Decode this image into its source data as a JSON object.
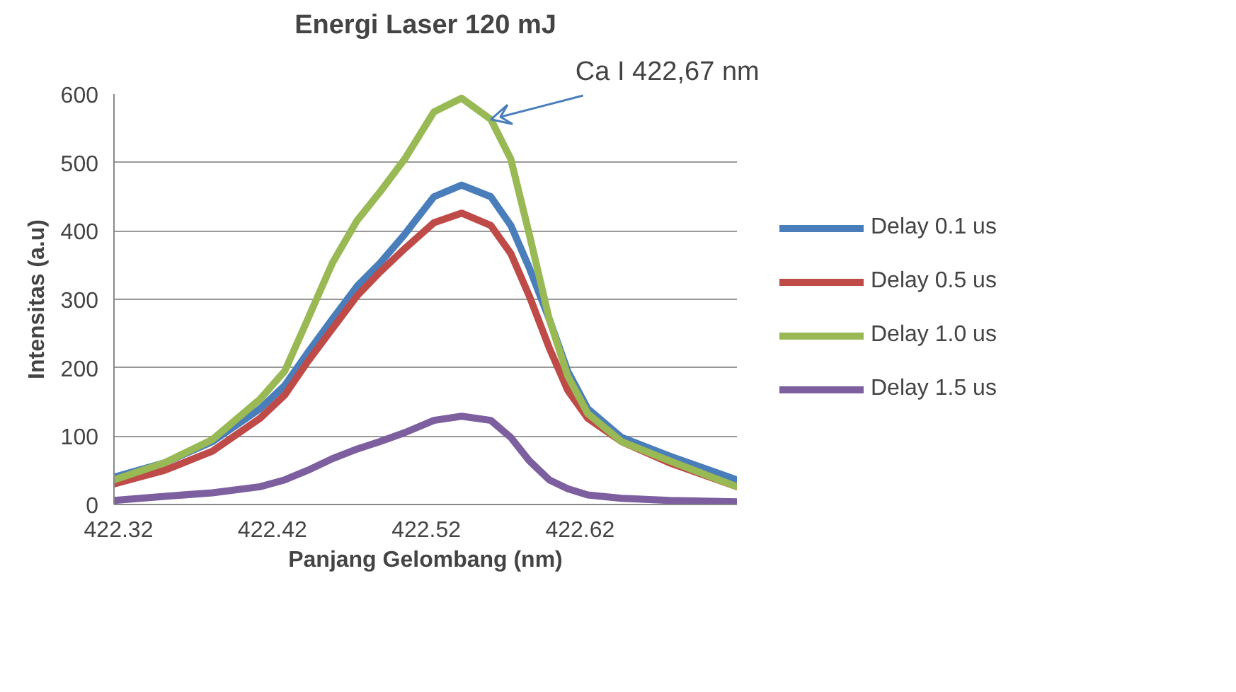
{
  "chart_data": {
    "type": "line",
    "title": "Energi Laser 120 mJ",
    "xlabel": "Panjang Gelombang (nm)",
    "ylabel": "Intensitas (a.u)",
    "x": [
      422.317,
      422.35,
      422.381,
      422.412,
      422.428,
      422.443,
      422.459,
      422.475,
      422.49,
      422.506,
      422.525,
      422.543,
      422.562,
      422.575,
      422.587,
      422.6,
      422.612,
      422.625,
      422.647,
      422.678,
      422.722
    ],
    "series": [
      {
        "name": "Delay 0.1 us",
        "color": "#4a7ebb",
        "values": [
          40,
          61,
          92,
          140,
          174,
          222,
          271,
          319,
          353,
          395,
          450,
          467,
          450,
          408,
          346,
          271,
          195,
          140,
          98,
          71,
          36
        ]
      },
      {
        "name": "Delay 0.5 us",
        "color": "#be4b48",
        "values": [
          30,
          50,
          78,
          126,
          160,
          209,
          257,
          305,
          340,
          374,
          412,
          426,
          408,
          367,
          305,
          229,
          167,
          126,
          92,
          61,
          26
        ]
      },
      {
        "name": "Delay 1.0 us",
        "color": "#98b954",
        "values": [
          36,
          61,
          95,
          154,
          195,
          271,
          353,
          415,
          457,
          505,
          574,
          594,
          563,
          505,
          395,
          271,
          188,
          133,
          92,
          64,
          26
        ]
      },
      {
        "name": "Delay 1.5 us",
        "color": "#7d5fa0",
        "values": [
          6,
          12,
          17,
          26,
          36,
          50,
          67,
          81,
          92,
          105,
          123,
          129,
          123,
          98,
          64,
          36,
          23,
          14,
          9,
          6,
          4
        ]
      }
    ],
    "xlim": [
      422.317,
      422.722
    ],
    "ylim": [
      0,
      600
    ],
    "xticks": [
      422.32,
      422.42,
      422.52,
      422.62
    ],
    "yticks": [
      0,
      100,
      200,
      300,
      400,
      500,
      600
    ],
    "grid": "y",
    "legend": "right",
    "marker": "none",
    "line_style": "solid",
    "annotations": [
      {
        "text": "Ca I 422,67 nm",
        "x": 422.562,
        "y": 563
      }
    ]
  }
}
